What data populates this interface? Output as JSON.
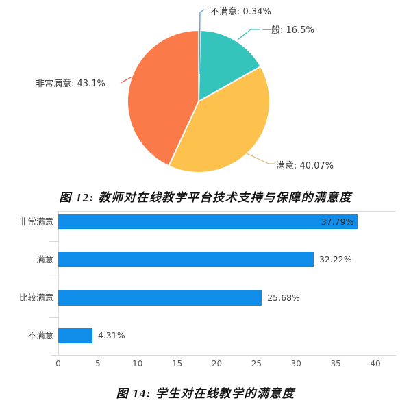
{
  "chart_data": [
    {
      "type": "pie",
      "caption": "图 12: 教师对在线教学平台技术支持与保障的满意度",
      "direction": "clockwise",
      "start_angle_deg": 0,
      "label_color": "#3d3d3d",
      "slice_border_color": "#ffffff",
      "slices": [
        {
          "label": "不满意",
          "value": 0.34,
          "display": "不满意: 0.34%",
          "color": "#5b9bd5",
          "leader_color": "#5b9bd5"
        },
        {
          "label": "一般",
          "value": 16.5,
          "display": "一般: 16.5%",
          "color": "#35c4bc",
          "leader_color": "#35c4bc"
        },
        {
          "label": "满意",
          "value": 40.07,
          "display": "满意: 40.07%",
          "color": "#fcc24d",
          "leader_color": "#d9c08a"
        },
        {
          "label": "非常满意",
          "value": 43.1,
          "display": "非常满意: 43.1%",
          "color": "#fa7a4a",
          "leader_color": "#e2695a"
        }
      ]
    },
    {
      "type": "bar",
      "orientation": "horizontal",
      "caption": "图 14: 学生对在线教学的满意度",
      "categories": [
        "非常满意",
        "满意",
        "比较满意",
        "不满意"
      ],
      "values": [
        37.79,
        32.22,
        25.68,
        4.31
      ],
      "value_labels": [
        "37.79%",
        "32.22%",
        "25.68%",
        "4.31%"
      ],
      "x_ticks": [
        "0",
        "5",
        "10",
        "15",
        "20",
        "25",
        "30",
        "35",
        "40"
      ],
      "xlim": [
        0,
        40
      ],
      "grid": false,
      "bar_color": "#0f8de9",
      "axis_color": "#d9d9d9",
      "tick_label_color": "#595959",
      "category_label_color": "#3d3d3d",
      "value_label_color": "#3d3d3d"
    }
  ]
}
